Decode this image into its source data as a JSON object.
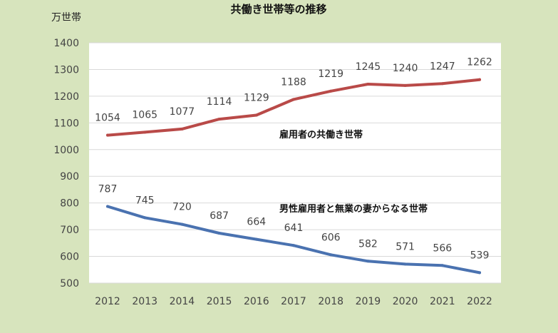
{
  "chart_data": {
    "type": "line",
    "title": "共働き世帯等の推移",
    "unit_label": "万世帯",
    "x": [
      "2012",
      "2013",
      "2014",
      "2015",
      "2016",
      "2017",
      "2018",
      "2019",
      "2020",
      "2021",
      "2022"
    ],
    "ylim": [
      500,
      1400
    ],
    "yticks": [
      500,
      600,
      700,
      800,
      900,
      1000,
      1100,
      1200,
      1300,
      1400
    ],
    "grid": true,
    "legend": "none",
    "series": [
      {
        "name": "雇用者の共働き世帯",
        "color": "#b94a48",
        "values": [
          1054,
          1065,
          1077,
          1114,
          1129,
          1188,
          1219,
          1245,
          1240,
          1247,
          1262
        ],
        "data_labels": [
          "1054",
          "1065",
          "1077",
          "1114",
          "1129",
          "1188",
          "1219",
          "1245",
          "1240",
          "1247",
          "1262"
        ]
      },
      {
        "name": "男性雇用者と無業の妻からなる世帯",
        "color": "#4a72b0",
        "values": [
          787,
          745,
          720,
          687,
          664,
          641,
          606,
          582,
          571,
          566,
          539
        ],
        "data_labels": [
          "787",
          "745",
          "720",
          "687",
          "664",
          "641",
          "606",
          "582",
          "571",
          "566",
          "539"
        ]
      }
    ]
  }
}
